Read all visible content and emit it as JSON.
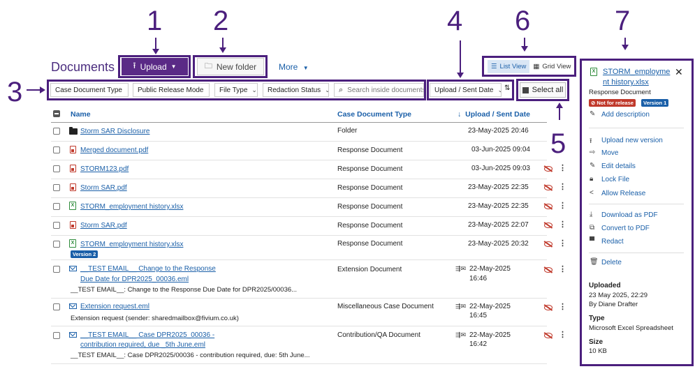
{
  "annotations": [
    "1",
    "2",
    "3",
    "4",
    "5",
    "6",
    "7"
  ],
  "page_title": "Documents",
  "toolbar": {
    "upload_label": "Upload",
    "new_folder_label": "New folder",
    "more_label": "More"
  },
  "filters": {
    "case_document_type": "Case Document Type",
    "public_release_mode": "Public Release Mode",
    "file_type": "File Type",
    "redaction_status": "Redaction Status",
    "search_placeholder": "Search inside documents",
    "sort": "Upload / Sent Date"
  },
  "views": {
    "list": "List View",
    "grid": "Grid View"
  },
  "select_all_label": "Select all",
  "table": {
    "columns": {
      "name": "Name",
      "type": "Case Document Type",
      "date": "Upload / Sent Date"
    },
    "rows": [
      {
        "name": "Storm SAR Disclosure",
        "type": "Folder",
        "date": "23-May-2025 20:46",
        "icon": "folder-icon"
      },
      {
        "name": "Merged document.pdf",
        "type": "Response Document",
        "date": "03-Jun-2025 09:04",
        "icon": "pdf-icon"
      },
      {
        "name": "STORM123.pdf",
        "type": "Response Document",
        "date": "03-Jun-2025 09:03",
        "icon": "pdf-icon"
      },
      {
        "name": "Storm SAR.pdf",
        "type": "Response Document",
        "date": "23-May-2025 22:35",
        "icon": "pdf-icon"
      },
      {
        "name": "STORM_employment history.xlsx",
        "type": "Response Document",
        "date": "23-May-2025 22:35",
        "icon": "excel-icon"
      },
      {
        "name": "Storm SAR.pdf",
        "type": "Response Document",
        "date": "23-May-2025 22:07",
        "icon": "pdf-icon"
      },
      {
        "name": "STORM_employment history.xlsx",
        "type": "Response Document",
        "date": "23-May-2025 20:32",
        "icon": "excel-icon",
        "badge": "Version 2"
      },
      {
        "name1": "__TEST EMAIL__ Change to the Response",
        "name2": "Due Date for DPR2025_00036.eml",
        "type": "Extension Document",
        "date1": "22-May-2025",
        "date2": "16:46",
        "desc": "__TEST EMAIL__: Change to the Response Due Date for DPR2025/00036...",
        "icon": "email-icon"
      },
      {
        "name": "Extension request.eml",
        "type": "Miscellaneous Case Document",
        "date1": "22-May-2025",
        "date2": "16:45",
        "desc": "Extension request (sender: sharedmailbox@fivium.co.uk)",
        "icon": "email-icon"
      },
      {
        "name1": "__TEST EMAIL__ Case DPR2025_00036 -",
        "name2": "contribution required, due _5th June.eml",
        "type": "Contribution/QA Document",
        "date1": "22-May-2025",
        "date2": "16:42",
        "desc": "__TEST EMAIL__: Case DPR2025/00036 - contribution required, due: 5th June...",
        "icon": "email-icon"
      }
    ]
  },
  "panel": {
    "file_name_1": "STORM_employme",
    "file_name_2": "nt history.xlsx",
    "doc_type": "Response Document",
    "tag_release": "Not for release",
    "tag_version": "Version 1",
    "add_description": "Add description",
    "actions": [
      "Upload new version",
      "Move",
      "Edit details",
      "Lock File",
      "Allow Release"
    ],
    "export_actions": [
      "Download as PDF",
      "Convert to PDF",
      "Redact"
    ],
    "delete": "Delete",
    "uploaded_label": "Uploaded",
    "uploaded_date": "23 May 2025, 22:29",
    "uploaded_by": "By Diane Drafter",
    "type_label": "Type",
    "type_value": "Microsoft Excel Spreadsheet",
    "size_label": "Size",
    "size_value": "10 KB"
  },
  "colors": {
    "accent": "#5a2a86",
    "annotation": "#4b1f7d",
    "link": "#1a5fa8",
    "danger": "#c0392b"
  }
}
